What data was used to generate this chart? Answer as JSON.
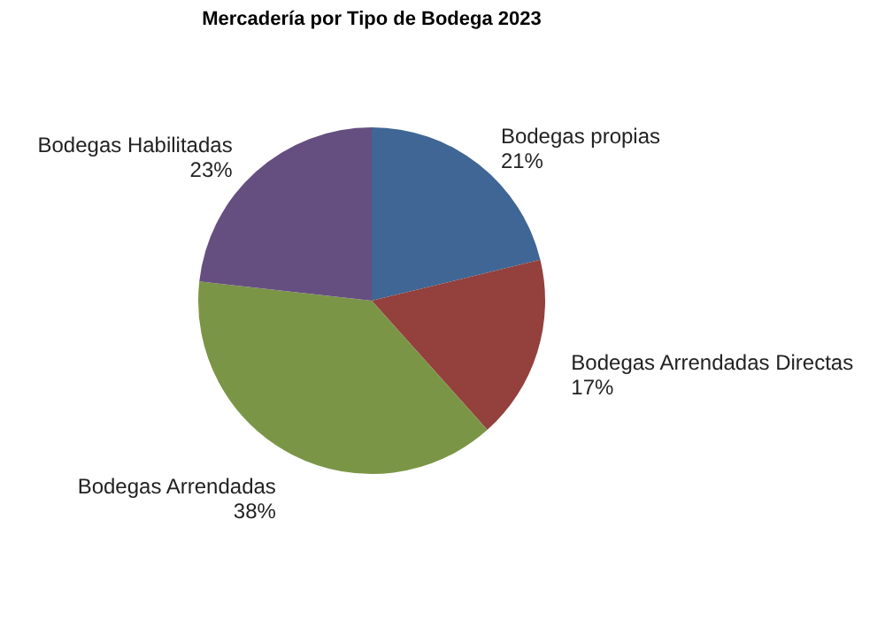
{
  "chart_data": {
    "type": "pie",
    "title": "Mercadería por Tipo de Bodega 2023",
    "categories": [
      "Bodegas propias",
      "Bodegas Arrendadas Directas",
      "Bodegas Arrendadas",
      "Bodegas Habilitadas"
    ],
    "values": [
      21,
      17,
      38,
      23
    ],
    "colors": [
      "#3f6694",
      "#94403d",
      "#7b9546",
      "#654f80"
    ],
    "value_labels": [
      "21%",
      "17%",
      "38%",
      "23%"
    ],
    "legend": false
  }
}
